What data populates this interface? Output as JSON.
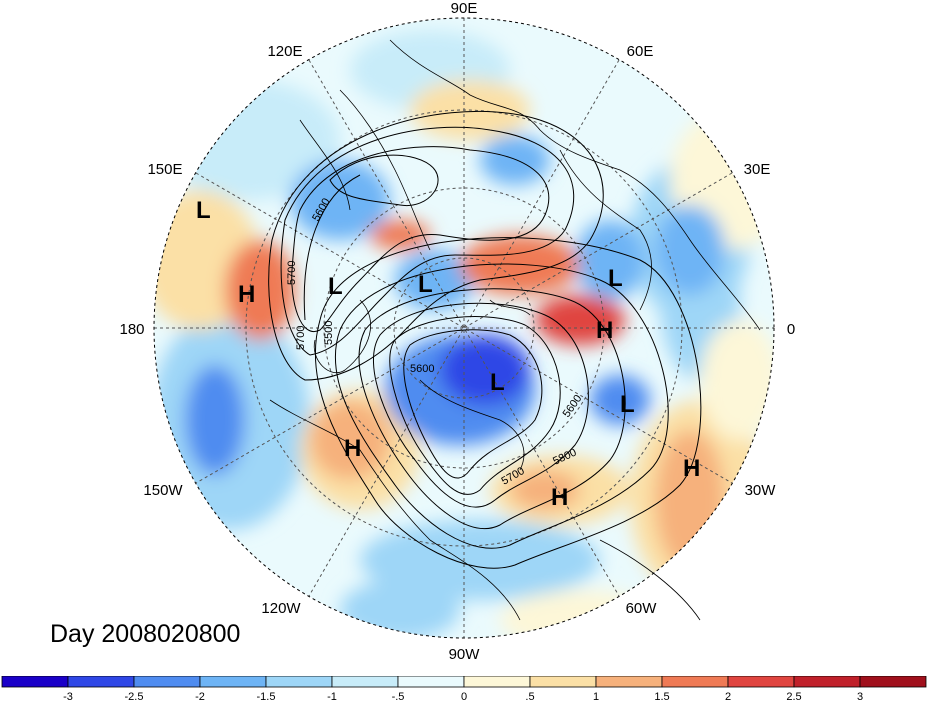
{
  "title": "Day 2008020800",
  "longitude_labels": {
    "top": "90E",
    "top_left": "120E",
    "top_right": "60E",
    "upper_left": "150E",
    "upper_right": "30E",
    "left": "180",
    "right": "0",
    "lower_left": "150W",
    "lower_right": "30W",
    "bottom_left": "120W",
    "bottom_right": "60W",
    "bottom": "90W"
  },
  "pressure_systems": [
    {
      "type": "L",
      "label": "L",
      "region": "Aleutian / west Pacific"
    },
    {
      "type": "H",
      "label": "H",
      "region": "dateline"
    },
    {
      "type": "L",
      "label": "L",
      "region": "eastern Siberia"
    },
    {
      "type": "L",
      "label": "L",
      "region": "central Siberia"
    },
    {
      "type": "L",
      "label": "L",
      "region": "eastern Europe"
    },
    {
      "type": "H",
      "label": "H",
      "region": "western Europe / Mediterranean"
    },
    {
      "type": "L",
      "label": "L",
      "region": "Hudson Bay"
    },
    {
      "type": "L",
      "label": "L",
      "region": "North Atlantic"
    },
    {
      "type": "H",
      "label": "H",
      "region": "western North America"
    },
    {
      "type": "H",
      "label": "H",
      "region": "western Atlantic"
    },
    {
      "type": "H",
      "label": "H",
      "region": "central Atlantic"
    }
  ],
  "contour_labels": [
    "5600",
    "5700",
    "5500",
    "5700",
    "5600",
    "5600",
    "5700",
    "5800"
  ],
  "colorbar": {
    "tick_labels": [
      "-3",
      "-2.5",
      "-2",
      "-1.5",
      "-1",
      "-.5",
      "0",
      ".5",
      "1",
      "1.5",
      "2",
      "2.5",
      "3"
    ],
    "colors": [
      "#1a00c8",
      "#2f47e6",
      "#4f8cf0",
      "#6eb4f5",
      "#9ed6f7",
      "#c8ecf9",
      "#eafafd",
      "#fdf7d8",
      "#fbe0a6",
      "#f6b17c",
      "#ef7a55",
      "#e04540",
      "#c0202a",
      "#a0101c"
    ]
  }
}
